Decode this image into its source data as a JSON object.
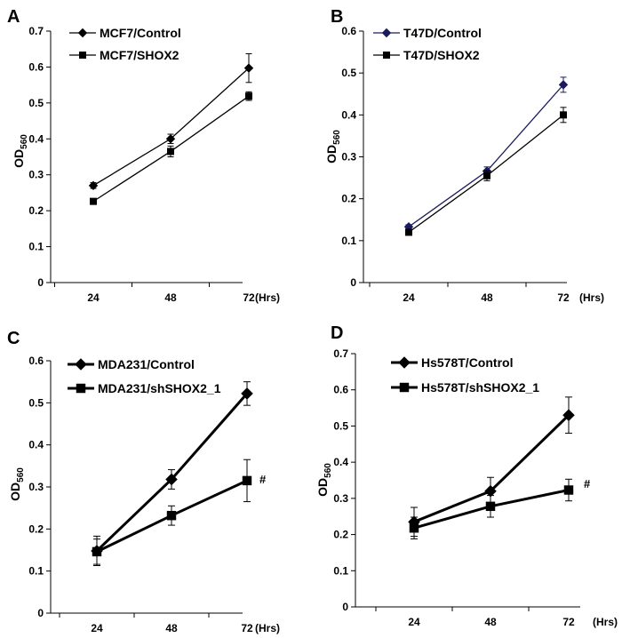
{
  "chart_data": [
    {
      "type": "line",
      "panel_label": "A",
      "x_unit": "(Hrs)",
      "ylabel": "OD",
      "ylabel_sub": "560",
      "ylim": [
        0,
        0.7
      ],
      "yticks": [
        0,
        0.1,
        0.2,
        0.3,
        0.4,
        0.5,
        0.6,
        0.7
      ],
      "ytick_labels": [
        "0",
        "0.1",
        "0.2",
        "0.3",
        "0.4",
        "0.5",
        "0.6",
        "0.7"
      ],
      "categories": [
        "24",
        "48",
        "72"
      ],
      "grid": false,
      "legend_position": "top-left",
      "annotation": "",
      "series": [
        {
          "name": "MCF7/Control",
          "marker": "diamond",
          "color": "#000000",
          "values": [
            0.27,
            0.4,
            0.597
          ],
          "err": [
            0.008,
            0.013,
            0.04
          ]
        },
        {
          "name": "MCF7/SHOX2",
          "marker": "square",
          "color": "#000000",
          "values": [
            0.226,
            0.365,
            0.519
          ],
          "err": [
            0.006,
            0.015,
            0.012
          ]
        }
      ]
    },
    {
      "type": "line",
      "panel_label": "B",
      "x_unit": "(Hrs)",
      "ylabel": "OD",
      "ylabel_sub": "560",
      "ylim": [
        0,
        0.6
      ],
      "yticks": [
        0,
        0.1,
        0.2,
        0.3,
        0.4,
        0.5,
        0.6
      ],
      "ytick_labels": [
        "0",
        "0.1",
        "0.2",
        "0.3",
        "0.4",
        "0.5",
        "0.6"
      ],
      "categories": [
        "24",
        "48",
        "72"
      ],
      "grid": false,
      "legend_position": "top-left",
      "annotation": "",
      "series": [
        {
          "name": "T47D/Control",
          "marker": "diamond",
          "color": "#1a1a5e",
          "values": [
            0.133,
            0.266,
            0.472
          ],
          "err": [
            0.005,
            0.01,
            0.018
          ]
        },
        {
          "name": "T47D/SHOX2",
          "marker": "square",
          "color": "#000000",
          "values": [
            0.12,
            0.255,
            0.4
          ],
          "err": [
            0.005,
            0.012,
            0.018
          ]
        }
      ]
    },
    {
      "type": "line",
      "panel_label": "C",
      "x_unit": "(Hrs)",
      "ylabel": "OD",
      "ylabel_sub": "560",
      "ylim": [
        0,
        0.6
      ],
      "yticks": [
        0,
        0.1,
        0.2,
        0.3,
        0.4,
        0.5,
        0.6
      ],
      "ytick_labels": [
        "0",
        "0.1",
        "0.2",
        "0.3",
        "0.4",
        "0.5",
        "0.6"
      ],
      "categories": [
        "24",
        "48",
        "72"
      ],
      "grid": false,
      "legend_position": "top-left",
      "annotation": "#",
      "series": [
        {
          "name": "MDA231/Control",
          "marker": "diamond",
          "color": "#000000",
          "values": [
            0.148,
            0.318,
            0.522
          ],
          "err": [
            0.035,
            0.023,
            0.028
          ]
        },
        {
          "name": "MDA231/shSHOX2_1",
          "marker": "square",
          "color": "#000000",
          "values": [
            0.146,
            0.232,
            0.315
          ],
          "err": [
            0.03,
            0.023,
            0.05
          ]
        }
      ]
    },
    {
      "type": "line",
      "panel_label": "D",
      "x_unit": "(Hrs)",
      "ylabel": "OD",
      "ylabel_sub": "560",
      "ylim": [
        0,
        0.7
      ],
      "yticks": [
        0,
        0.1,
        0.2,
        0.3,
        0.4,
        0.5,
        0.6,
        0.7
      ],
      "ytick_labels": [
        "0",
        "0.1",
        "0.2",
        "0.3",
        "0.4",
        "0.5",
        "0.6",
        "0.7"
      ],
      "categories": [
        "24",
        "48",
        "72"
      ],
      "grid": false,
      "legend_position": "top-left",
      "annotation": "#",
      "series": [
        {
          "name": "Hs578T/Control",
          "marker": "diamond",
          "color": "#000000",
          "values": [
            0.235,
            0.32,
            0.53
          ],
          "err": [
            0.04,
            0.038,
            0.05
          ]
        },
        {
          "name": "Hs578T/shSHOX2_1",
          "marker": "square",
          "color": "#000000",
          "values": [
            0.218,
            0.278,
            0.323
          ],
          "err": [
            0.03,
            0.03,
            0.03
          ]
        }
      ]
    }
  ]
}
